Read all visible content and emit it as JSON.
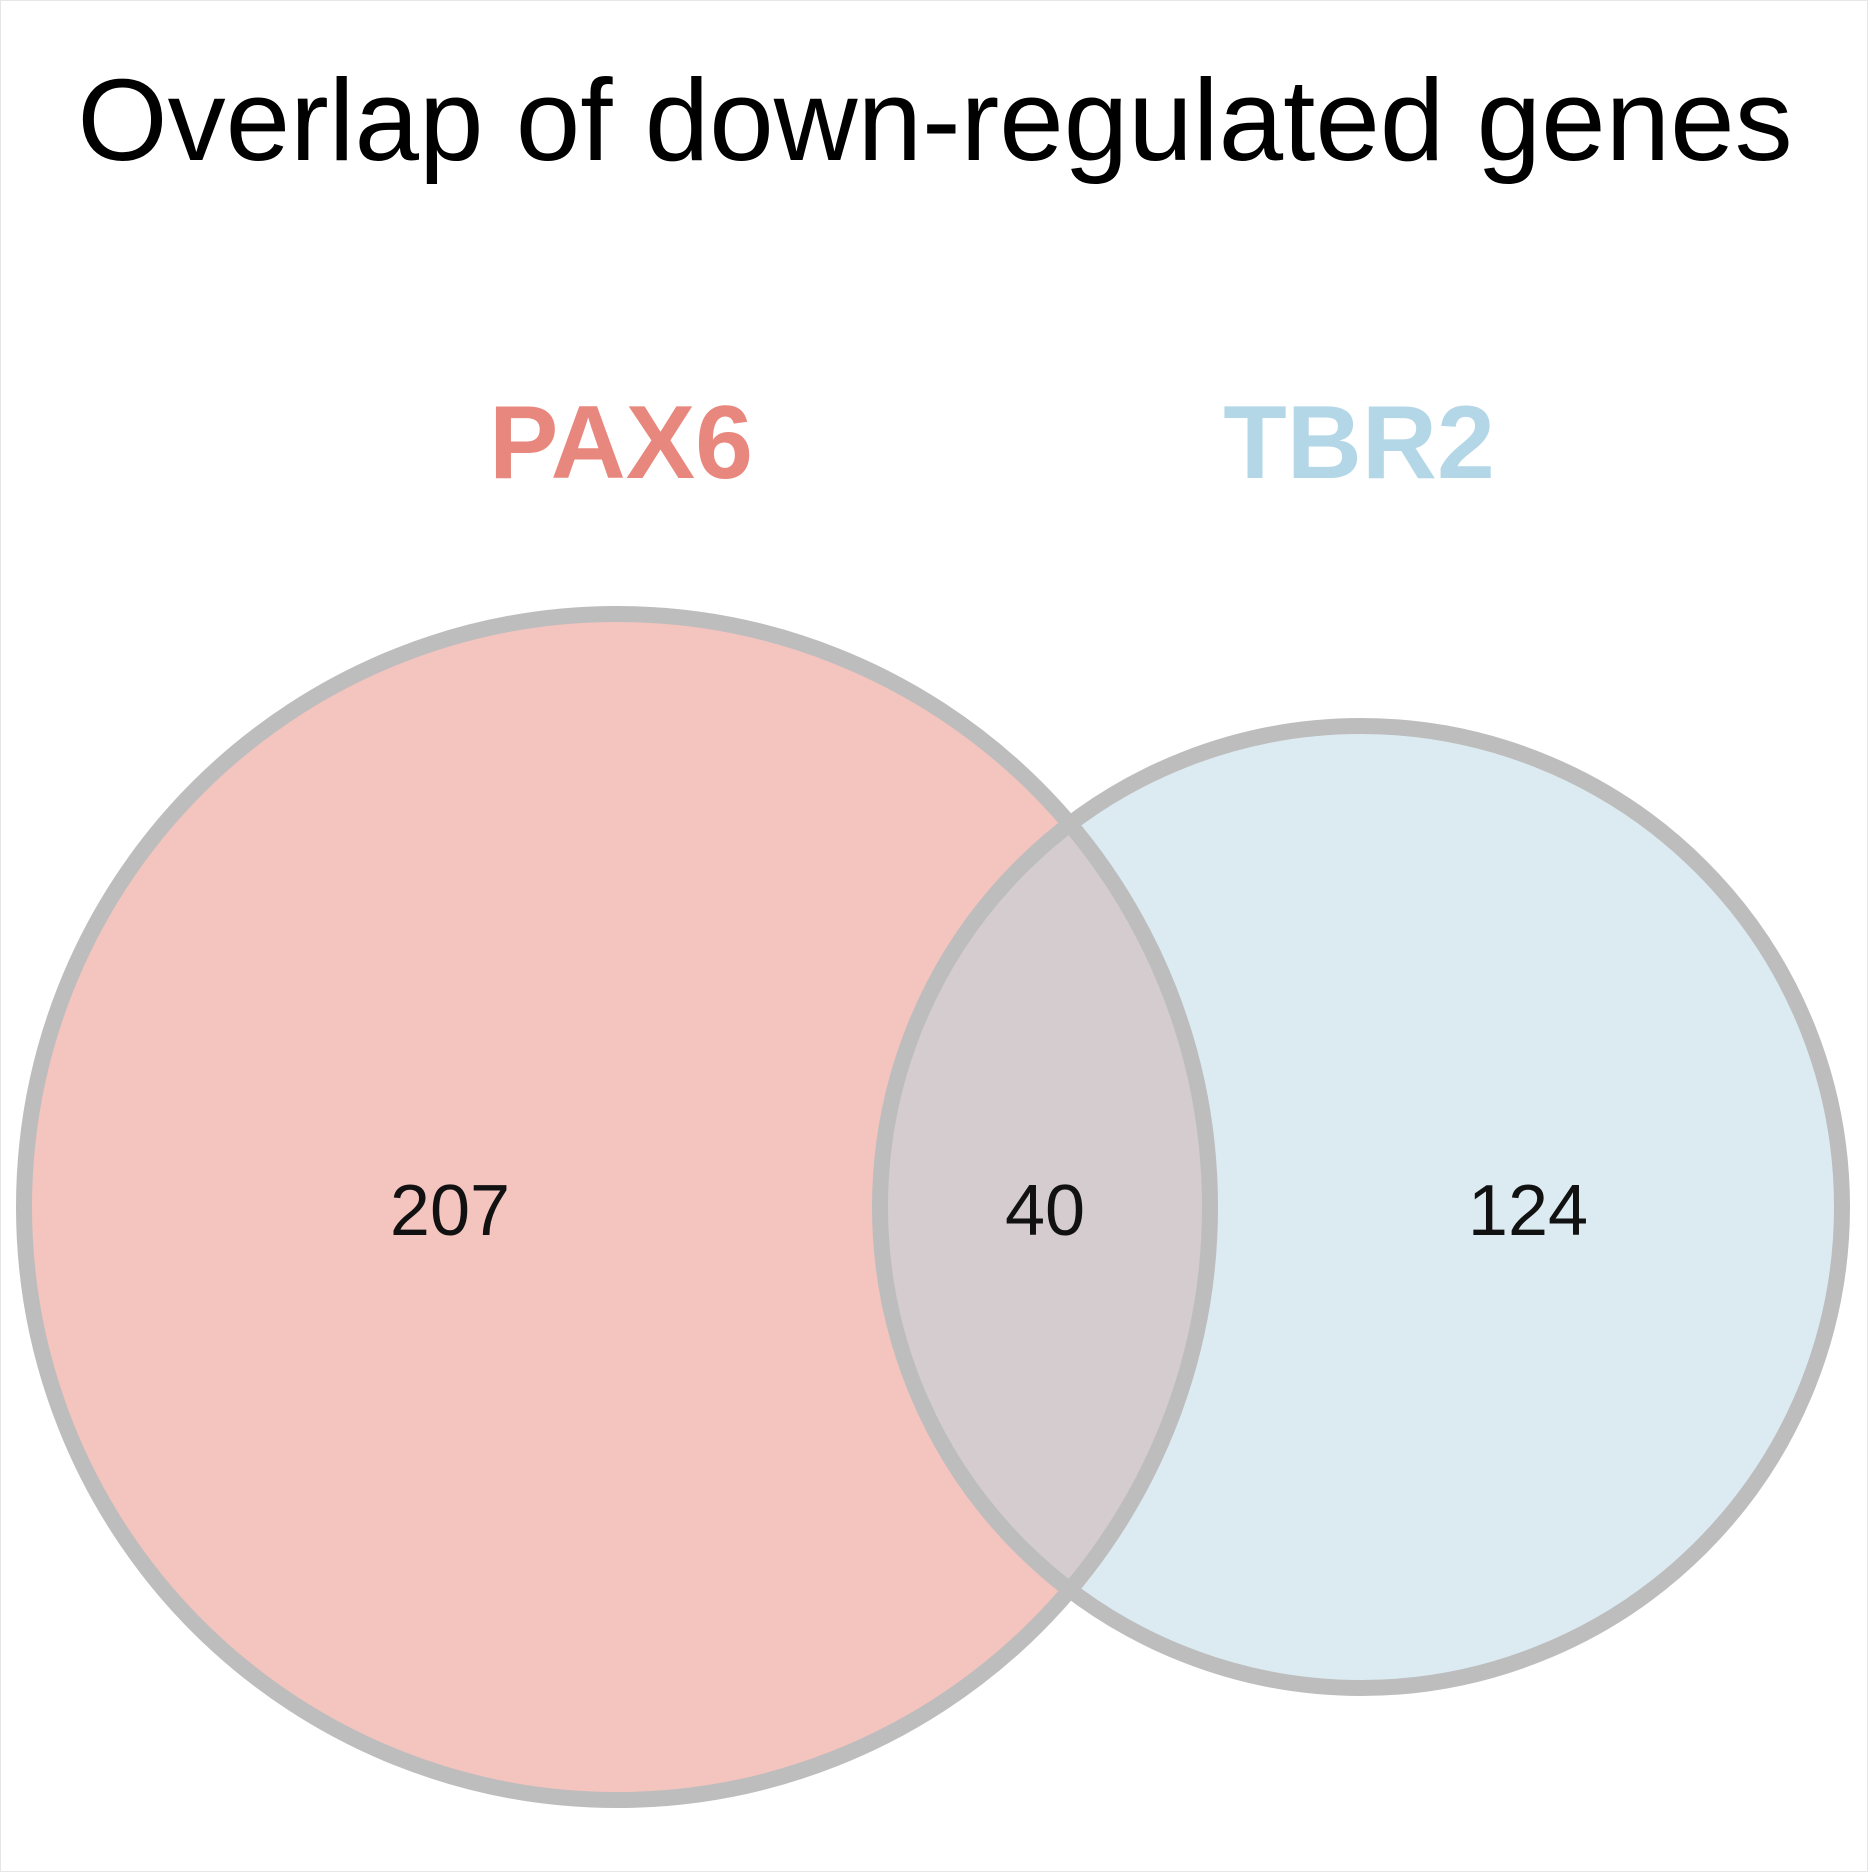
{
  "title": "Overlap of down-regulated genes",
  "sets": [
    {
      "name": "PAX6",
      "color": "#E8877D",
      "fill": "#F4C4BF"
    },
    {
      "name": "TBR2",
      "color": "#B3D7E6",
      "fill": "#DCEBF2"
    }
  ],
  "regions": {
    "pax6_only": "207",
    "overlap": "40",
    "tbr2_only": "124"
  },
  "colors": {
    "overlap_fill": "#D4CCCE",
    "outline": "#BDBDBD"
  }
}
